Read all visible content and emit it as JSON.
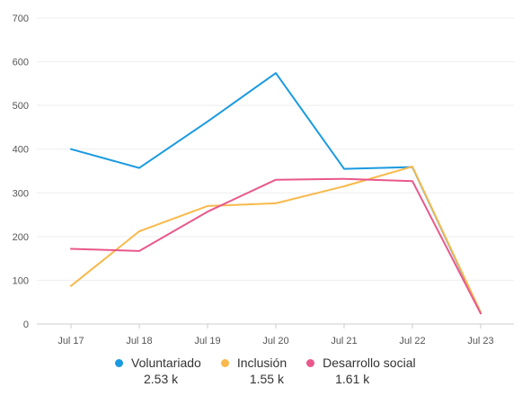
{
  "chart_data": {
    "type": "line",
    "title": "",
    "xlabel": "",
    "ylabel": "",
    "categories": [
      "Jul 17",
      "Jul 18",
      "Jul 19",
      "Jul 20",
      "Jul 21",
      "Jul 22",
      "Jul 23"
    ],
    "yticks": [
      "0",
      "100",
      "200",
      "300",
      "400",
      "500",
      "600",
      "700"
    ],
    "ylim": [
      0,
      700
    ],
    "grid": true,
    "legend_position": "bottom",
    "series": [
      {
        "name": "Voluntariado",
        "color": "#1a9ae0",
        "total_label": "2.53 k",
        "values": [
          400,
          357,
          463,
          574,
          355,
          359,
          25
        ]
      },
      {
        "name": "Inclusión",
        "color": "#f9b94b",
        "total_label": "1.55 k",
        "values": [
          87,
          212,
          270,
          276,
          315,
          360,
          27
        ]
      },
      {
        "name": "Desarrollo social",
        "color": "#e9588c",
        "total_label": "1.61 k",
        "values": [
          172,
          167,
          257,
          330,
          332,
          327,
          24
        ]
      }
    ]
  }
}
